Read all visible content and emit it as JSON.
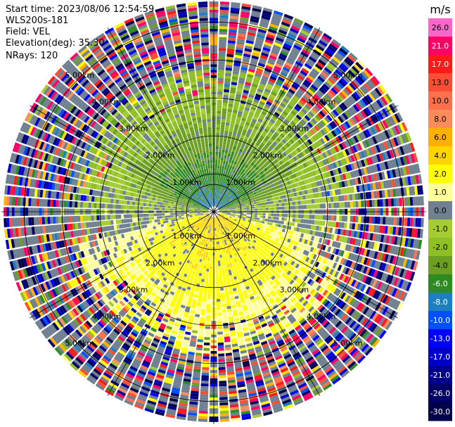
{
  "header": {
    "start_time": "Start time: 2023/08/06 12:54:59",
    "instrument": "WLS200s-181",
    "field": "Field: VEL",
    "elevation": "Elevation(deg): 35.30",
    "nrays": "NRays: 120"
  },
  "chart_data": {
    "type": "heatmap",
    "projection": "polar-ppi",
    "field": "VEL",
    "nrays": 120,
    "elevation_deg": 35.3,
    "max_range_km": 5.6,
    "range_ring_labels_km": [
      "1.00km",
      "2.00km",
      "3.00km",
      "4.00km",
      "5.00km"
    ],
    "units": "m/s",
    "colorbar": {
      "ticks": [
        "26.0",
        "21.0",
        "17.0",
        "13.0",
        "10.0",
        "8.0",
        "6.0",
        "4.0",
        "2.0",
        "1.0",
        "0.0",
        "-1.0",
        "-2.0",
        "-4.0",
        "-6.0",
        "-8.0",
        "-10.0",
        "-13.0",
        "-17.0",
        "-21.0",
        "-26.0",
        "-30.0"
      ],
      "colors": [
        "#ff66cc",
        "#ff0066",
        "#ff1a1a",
        "#ff4d33",
        "#ff704d",
        "#ff8c5a",
        "#ffb000",
        "#ffd400",
        "#ffff00",
        "#ffff99",
        "#708090",
        "#a6cc33",
        "#8fbf26",
        "#6b9e23",
        "#2e8b22",
        "#1e7fc0",
        "#0050ff",
        "#0000ff",
        "#0000c8",
        "#00008b",
        "#000066",
        "#00004b"
      ]
    },
    "velocity_pattern": {
      "near_north_mps": -7.0,
      "near_south_mps": 5.0,
      "mid_north_mps": -1.5,
      "mid_south_mps": 2.0,
      "noise_beyond_km": 3.7
    }
  }
}
